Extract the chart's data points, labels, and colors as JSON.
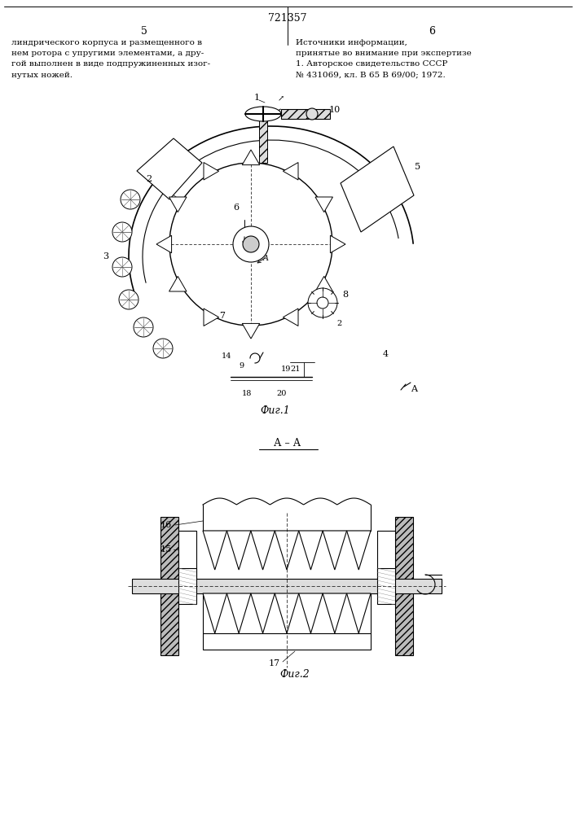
{
  "bg_color": "#ffffff",
  "line_color": "#000000",
  "page_number_text": "721357",
  "page_left": "5",
  "page_right": "6",
  "text_left_col": "линдрического корпуса и размещенного в\nнем ротора с упругими элементами, а дру-\nгой выполнен в виде подпружиненных изог-\nнутых ножей.",
  "text_right_col": "Источники информации,\nпринятые во внимание при экспертизе\n1. Авторское свидетельство СССР\n№ 431069, кл. В 65 В 69/00; 1972.",
  "fig1_caption": "Фиг.1",
  "fig2_caption": "Фиг.2",
  "section_label": "А – А",
  "arrow_label": "А"
}
